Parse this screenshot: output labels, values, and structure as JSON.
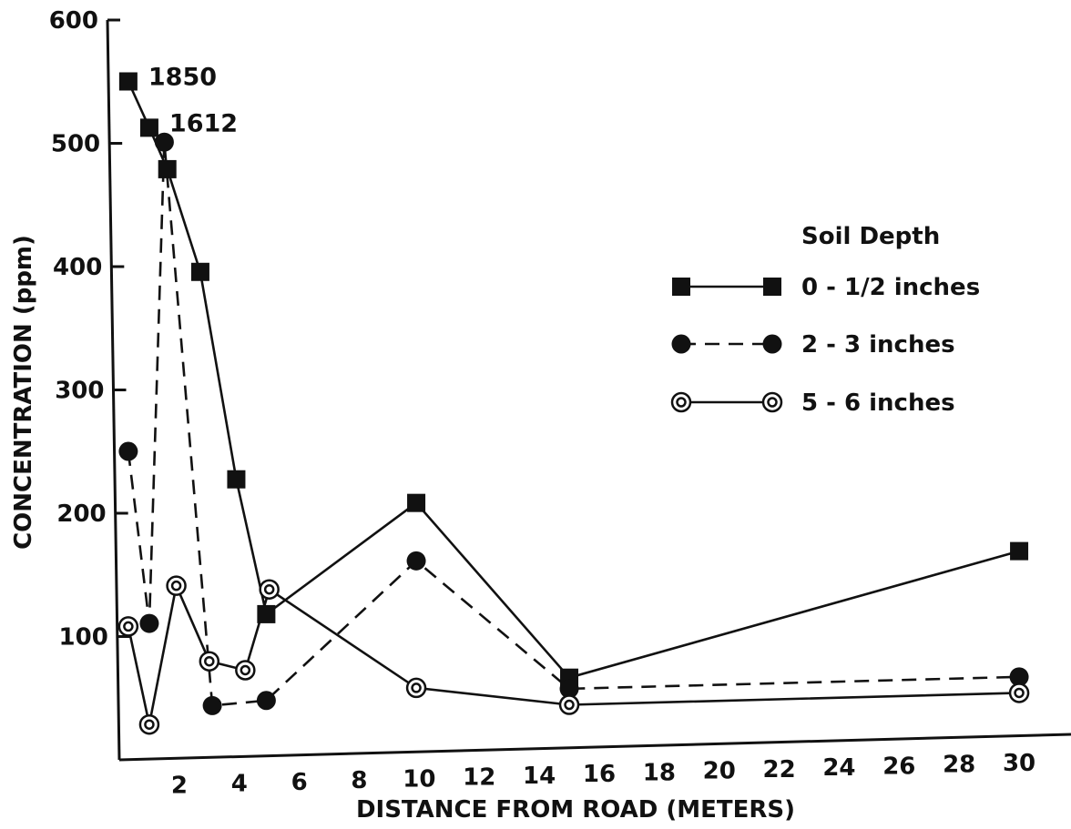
{
  "chart_data": {
    "type": "line",
    "xlabel": "DISTANCE FROM ROAD (METERS)",
    "ylabel": "CONCENTRATION (ppm)",
    "xlim": [
      0,
      31
    ],
    "ylim": [
      0,
      600
    ],
    "x_ticks": [
      2,
      4,
      6,
      8,
      10,
      12,
      14,
      16,
      18,
      20,
      22,
      24,
      26,
      28,
      30
    ],
    "y_ticks": [
      100,
      200,
      300,
      400,
      500,
      600
    ],
    "x_tick_labels": [
      "2",
      "4",
      "6",
      "8",
      "10",
      "12",
      "14",
      "16",
      "18",
      "20",
      "22",
      "24",
      "26",
      "28",
      "30"
    ],
    "y_tick_labels": [
      "100",
      "200",
      "300",
      "400",
      "500",
      "600"
    ],
    "legend": {
      "title": "Soil Depth",
      "placement": "right",
      "entries": [
        "0 - 1/2 inches",
        "2 - 3 inches",
        "5 - 6 inches"
      ]
    },
    "series": [
      {
        "name": "0 - 1/2 inches",
        "line_style": "solid",
        "marker": "square",
        "x": [
          0.3,
          1.0,
          1.6,
          2.7,
          3.9,
          4.9,
          9.9,
          15.0,
          30.0
        ],
        "y": [
          550,
          512,
          478,
          394,
          225,
          115,
          202,
          57,
          150
        ]
      },
      {
        "name": "2 - 3 inches",
        "line_style": "dashed",
        "marker": "circle",
        "x": [
          0.3,
          1.0,
          1.5,
          3.1,
          4.9,
          9.9,
          15.0,
          30.0
        ],
        "y": [
          250,
          110,
          500,
          42,
          45,
          155,
          48,
          48
        ]
      },
      {
        "name": "5 - 6 inches",
        "line_style": "solid",
        "marker": "ring",
        "x": [
          0.3,
          1.0,
          1.9,
          3.0,
          4.2,
          5.0,
          9.9,
          15.0,
          30.0
        ],
        "y": [
          108,
          28,
          140,
          78,
          70,
          135,
          52,
          35,
          35
        ]
      }
    ],
    "annotations": [
      {
        "text": "1850",
        "series": 0,
        "point": 0
      },
      {
        "text": "1612",
        "series": 0,
        "point": 1
      }
    ]
  }
}
